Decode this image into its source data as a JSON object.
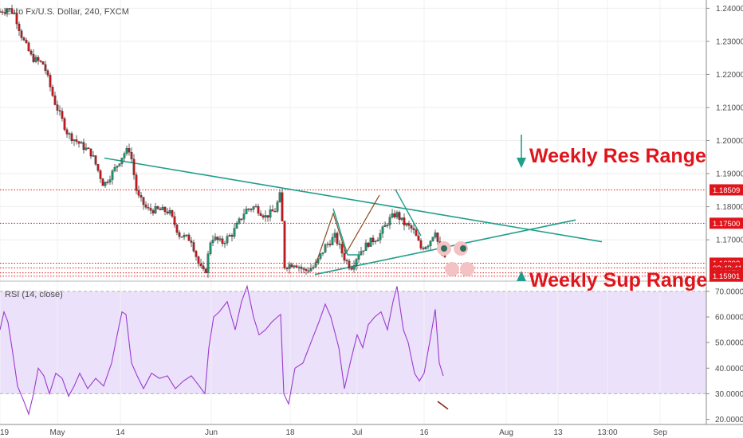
{
  "chart_data": [
    {
      "type": "candlestick",
      "title": "Euro Fx/U.S. Dollar, 240, FXCM",
      "price_ticks": [
        "1.24000",
        "1.23000",
        "1.22000",
        "1.21000",
        "1.20000",
        "1.19000",
        "1.18000",
        "1.17000"
      ],
      "price_tick_values": [
        1.24,
        1.23,
        1.22,
        1.21,
        1.2,
        1.19,
        1.18,
        1.17
      ],
      "ylim": [
        1.1575,
        1.2425
      ],
      "x_ticks": [
        "19",
        "May",
        "14",
        "Jun",
        "18",
        "Jul",
        "16",
        "Aug",
        "13",
        "13:00",
        "Sep"
      ],
      "x_tick_values": [
        0,
        72,
        151,
        265,
        364,
        448,
        532,
        635,
        700,
        762,
        828
      ],
      "x_span": [
        0,
        880
      ],
      "price_segments": [
        [
          0,
          1.239
        ],
        [
          10,
          1.24
        ],
        [
          18,
          1.2385
        ],
        [
          28,
          1.231
        ],
        [
          40,
          1.225
        ],
        [
          55,
          1.223
        ],
        [
          68,
          1.212
        ],
        [
          85,
          1.202
        ],
        [
          100,
          1.199
        ],
        [
          115,
          1.196
        ],
        [
          130,
          1.1865
        ],
        [
          143,
          1.191
        ],
        [
          155,
          1.196
        ],
        [
          163,
          1.1975
        ],
        [
          172,
          1.1835
        ],
        [
          185,
          1.179
        ],
        [
          200,
          1.179
        ],
        [
          212,
          1.1785
        ],
        [
          225,
          1.1715
        ],
        [
          240,
          1.17
        ],
        [
          250,
          1.162
        ],
        [
          257,
          1.1595
        ],
        [
          265,
          1.171
        ],
        [
          278,
          1.169
        ],
        [
          292,
          1.172
        ],
        [
          308,
          1.179
        ],
        [
          320,
          1.18
        ],
        [
          333,
          1.177
        ],
        [
          345,
          1.179
        ],
        [
          352,
          1.184
        ],
        [
          357,
          1.162
        ],
        [
          370,
          1.163
        ],
        [
          382,
          1.1605
        ],
        [
          395,
          1.162
        ],
        [
          408,
          1.168
        ],
        [
          420,
          1.171
        ],
        [
          432,
          1.1645
        ],
        [
          440,
          1.1615
        ],
        [
          450,
          1.166
        ],
        [
          462,
          1.169
        ],
        [
          475,
          1.171
        ],
        [
          488,
          1.176
        ],
        [
          497,
          1.178
        ],
        [
          506,
          1.175
        ],
        [
          518,
          1.173
        ],
        [
          528,
          1.1675
        ],
        [
          538,
          1.169
        ],
        [
          546,
          1.173
        ],
        [
          551,
          1.167
        ],
        [
          559,
          1.1635
        ]
      ],
      "levels": [
        {
          "label": "1.18509",
          "value": 1.18509,
          "color": "#e0151c"
        },
        {
          "label": "1.17500",
          "value": 1.175,
          "color": "#e0151c"
        },
        {
          "label": "1.16293",
          "value": 1.16293,
          "color": "#e0151c"
        },
        {
          "label": "02:43:41",
          "value": 1.1615,
          "color": "#e0151c"
        },
        {
          "label": "1.16279",
          "value": 1.16,
          "color": "#e0151c"
        },
        {
          "label": "1.15901",
          "value": 1.15901,
          "color": "#e0151c"
        }
      ],
      "trendlines": [
        {
          "from": [
            131,
            1.1947
          ],
          "to": [
            755,
            1.1694
          ],
          "color": "#1f9e8a"
        },
        {
          "from": [
            395,
            1.1595
          ],
          "to": [
            722,
            1.176
          ],
          "color": "#1f9e8a"
        }
      ],
      "annotations": [
        {
          "text": "Weekly Res Range",
          "x": 664,
          "y": 1.1896
        },
        {
          "text": "Weekly Sup Range",
          "x": 664,
          "y": 1.1575
        }
      ]
    },
    {
      "type": "line",
      "title": "RSI (14, close)",
      "y_ticks": [
        "70.0000",
        "60.0000",
        "50.0000",
        "40.0000",
        "30.0000",
        "20.0000"
      ],
      "y_tick_values": [
        70,
        60,
        50,
        40,
        30,
        20
      ],
      "ylim": [
        18,
        74
      ],
      "band": [
        30,
        70
      ],
      "values": [
        [
          0,
          55
        ],
        [
          5,
          62
        ],
        [
          10,
          58
        ],
        [
          15,
          48
        ],
        [
          22,
          33
        ],
        [
          30,
          27
        ],
        [
          36,
          22
        ],
        [
          42,
          30
        ],
        [
          48,
          40
        ],
        [
          55,
          37
        ],
        [
          62,
          30
        ],
        [
          70,
          38
        ],
        [
          78,
          36
        ],
        [
          86,
          29
        ],
        [
          93,
          33
        ],
        [
          100,
          38
        ],
        [
          110,
          32
        ],
        [
          120,
          36
        ],
        [
          130,
          33
        ],
        [
          140,
          42
        ],
        [
          147,
          53
        ],
        [
          153,
          62
        ],
        [
          158,
          61
        ],
        [
          165,
          42
        ],
        [
          172,
          37
        ],
        [
          180,
          32
        ],
        [
          190,
          38
        ],
        [
          200,
          36
        ],
        [
          210,
          37
        ],
        [
          220,
          32
        ],
        [
          230,
          35
        ],
        [
          240,
          37
        ],
        [
          250,
          33
        ],
        [
          257,
          30
        ],
        [
          262,
          48
        ],
        [
          268,
          60
        ],
        [
          275,
          62
        ],
        [
          285,
          66
        ],
        [
          295,
          55
        ],
        [
          303,
          66
        ],
        [
          310,
          72
        ],
        [
          318,
          60
        ],
        [
          325,
          53
        ],
        [
          333,
          55
        ],
        [
          341,
          58
        ],
        [
          348,
          60
        ],
        [
          352,
          61
        ],
        [
          356,
          30
        ],
        [
          362,
          26
        ],
        [
          370,
          40
        ],
        [
          380,
          42
        ],
        [
          390,
          50
        ],
        [
          400,
          58
        ],
        [
          408,
          65
        ],
        [
          415,
          60
        ],
        [
          425,
          48
        ],
        [
          432,
          32
        ],
        [
          440,
          43
        ],
        [
          448,
          53
        ],
        [
          455,
          48
        ],
        [
          462,
          57
        ],
        [
          470,
          60
        ],
        [
          478,
          62
        ],
        [
          486,
          55
        ],
        [
          493,
          66
        ],
        [
          498,
          72
        ],
        [
          506,
          55
        ],
        [
          512,
          50
        ],
        [
          520,
          38
        ],
        [
          526,
          35
        ],
        [
          532,
          38
        ],
        [
          540,
          52
        ],
        [
          546,
          63
        ],
        [
          551,
          42
        ],
        [
          556,
          37
        ]
      ],
      "drawing": {
        "from": [
          549,
          27
        ],
        "to": [
          562,
          24
        ],
        "color": "#8b2a10"
      }
    }
  ]
}
